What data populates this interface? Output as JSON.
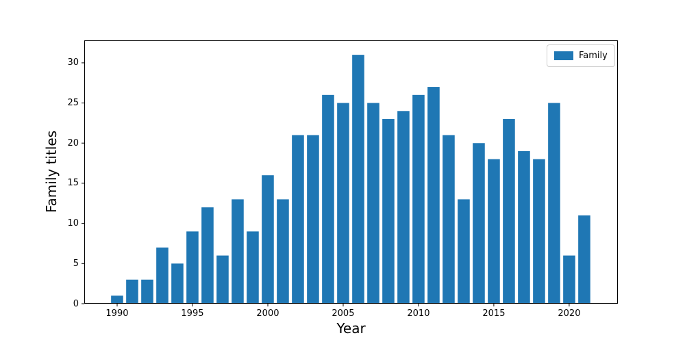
{
  "chart_data": {
    "type": "bar",
    "title": "",
    "xlabel": "Year",
    "ylabel": "Family titles",
    "series_name": "Family",
    "bar_color": "#1f77b4",
    "axis_color": "#000000",
    "bar_width_years": 0.8,
    "grid": false,
    "legend": {
      "position": "upper right",
      "entries": [
        {
          "label": "Family",
          "color": "#1f77b4"
        }
      ]
    },
    "x": [
      1990,
      1991,
      1992,
      1993,
      1994,
      1995,
      1996,
      1997,
      1998,
      1999,
      2000,
      2001,
      2002,
      2003,
      2004,
      2005,
      2006,
      2007,
      2008,
      2009,
      2010,
      2011,
      2012,
      2013,
      2014,
      2015,
      2016,
      2017,
      2018,
      2019,
      2020,
      2021
    ],
    "values": [
      1,
      3,
      3,
      7,
      5,
      9,
      12,
      6,
      13,
      9,
      16,
      13,
      21,
      21,
      26,
      25,
      31,
      25,
      23,
      24,
      26,
      27,
      21,
      13,
      20,
      18,
      23,
      19,
      18,
      25,
      6,
      11
    ],
    "xticks": [
      1990,
      1995,
      2000,
      2005,
      2010,
      2015,
      2020
    ],
    "yticks": [
      0,
      5,
      10,
      15,
      20,
      25,
      30
    ],
    "xlim": [
      1987.82,
      2023.23
    ],
    "ylim": [
      0,
      32.8
    ]
  }
}
